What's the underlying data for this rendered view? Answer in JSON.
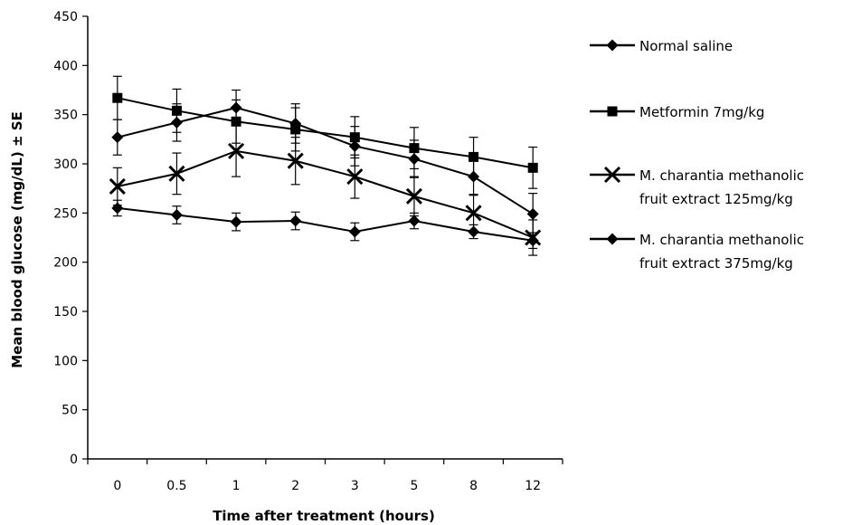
{
  "chart_data": {
    "type": "line",
    "title": "",
    "xlabel": "Time after treatment (hours)",
    "ylabel": "Mean blood glucose  (mg/dL) ± SE",
    "categories": [
      "0",
      "0.5",
      "1",
      "2",
      "3",
      "5",
      "8",
      "12"
    ],
    "ylim": [
      0,
      450
    ],
    "yticks": [
      "0",
      "50",
      "100",
      "150",
      "200",
      "250",
      "300",
      "350",
      "400",
      "450"
    ],
    "grid": false,
    "legend_position": "right",
    "series": [
      {
        "name": "Normal saline",
        "marker": "diamond",
        "values": [
          255,
          248,
          241,
          242,
          231,
          242,
          231,
          222
        ],
        "errors": [
          8,
          9,
          9,
          9,
          9,
          8,
          7,
          8
        ]
      },
      {
        "name": "Metformin 7mg/kg",
        "marker": "square",
        "values": [
          367,
          354,
          343,
          335,
          327,
          316,
          307,
          296
        ],
        "errors": [
          22,
          22,
          22,
          22,
          21,
          21,
          20,
          21
        ]
      },
      {
        "name": "M. charantia methanolic fruit extract 125mg/kg",
        "marker": "x",
        "values": [
          277,
          290,
          313,
          303,
          287,
          267,
          250,
          225
        ],
        "errors": [
          19,
          21,
          26,
          24,
          22,
          20,
          19,
          18
        ]
      },
      {
        "name": "M. charantia methanolic fruit extract 375mg/kg",
        "marker": "diamond",
        "values": [
          327,
          342,
          357,
          341,
          318,
          305,
          287,
          249
        ],
        "errors": [
          18,
          19,
          18,
          20,
          20,
          19,
          19,
          21
        ]
      }
    ]
  },
  "legend": {
    "items": [
      {
        "lines": [
          "Normal saline"
        ],
        "marker": "diamond"
      },
      {
        "lines": [
          "Metformin 7mg/kg"
        ],
        "marker": "square"
      },
      {
        "lines": [
          "M. charantia methanolic",
          "fruit extract 125mg/kg"
        ],
        "marker": "x"
      },
      {
        "lines": [
          "M. charantia methanolic",
          "fruit extract 375mg/kg"
        ],
        "marker": "diamond"
      }
    ]
  }
}
